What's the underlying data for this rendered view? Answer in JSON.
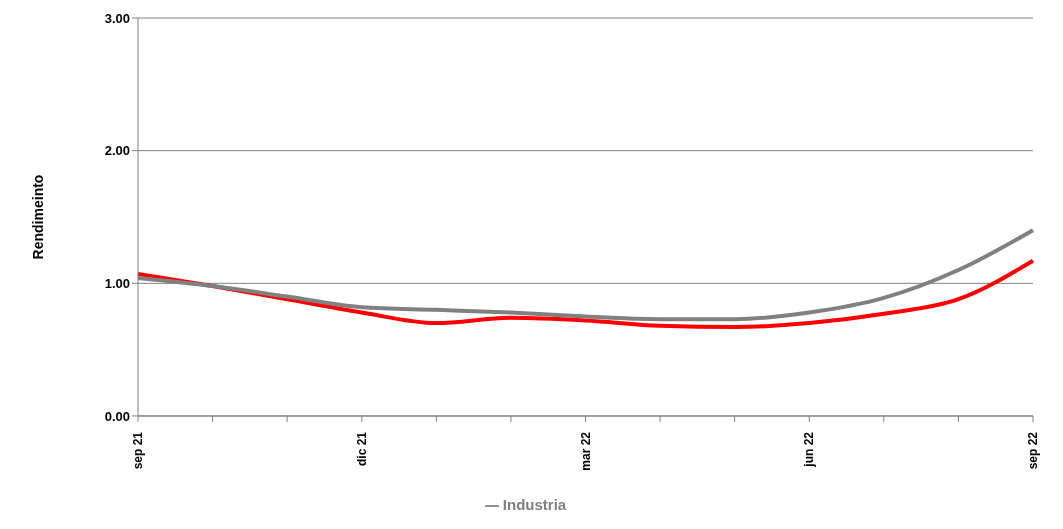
{
  "chart_data": {
    "type": "line",
    "ylabel": "Rendimeinto",
    "categories": [
      "sep 21",
      null,
      null,
      "dic 21",
      null,
      null,
      "mar 22",
      null,
      null,
      "jun 22",
      null,
      null,
      "sep 22"
    ],
    "series": [
      {
        "color": "#ff0000",
        "values": [
          1.07,
          0.98,
          0.88,
          0.78,
          0.7,
          0.74,
          0.72,
          0.68,
          0.67,
          0.7,
          0.77,
          0.88,
          1.17
        ]
      },
      {
        "name": "Industria",
        "color": "#808080",
        "values": [
          1.04,
          0.98,
          0.9,
          0.82,
          0.8,
          0.78,
          0.75,
          0.73,
          0.73,
          0.78,
          0.89,
          1.1,
          1.4
        ]
      }
    ],
    "ylim": [
      0,
      3
    ],
    "yticks": [
      {
        "value": 0,
        "label": "0.00"
      },
      {
        "value": 1,
        "label": "1.00"
      },
      {
        "value": 2,
        "label": "2.00"
      },
      {
        "value": 3,
        "label": "3.00"
      }
    ],
    "grid": "y",
    "legend": "bottom",
    "marker": "none",
    "line_style": "solid"
  }
}
